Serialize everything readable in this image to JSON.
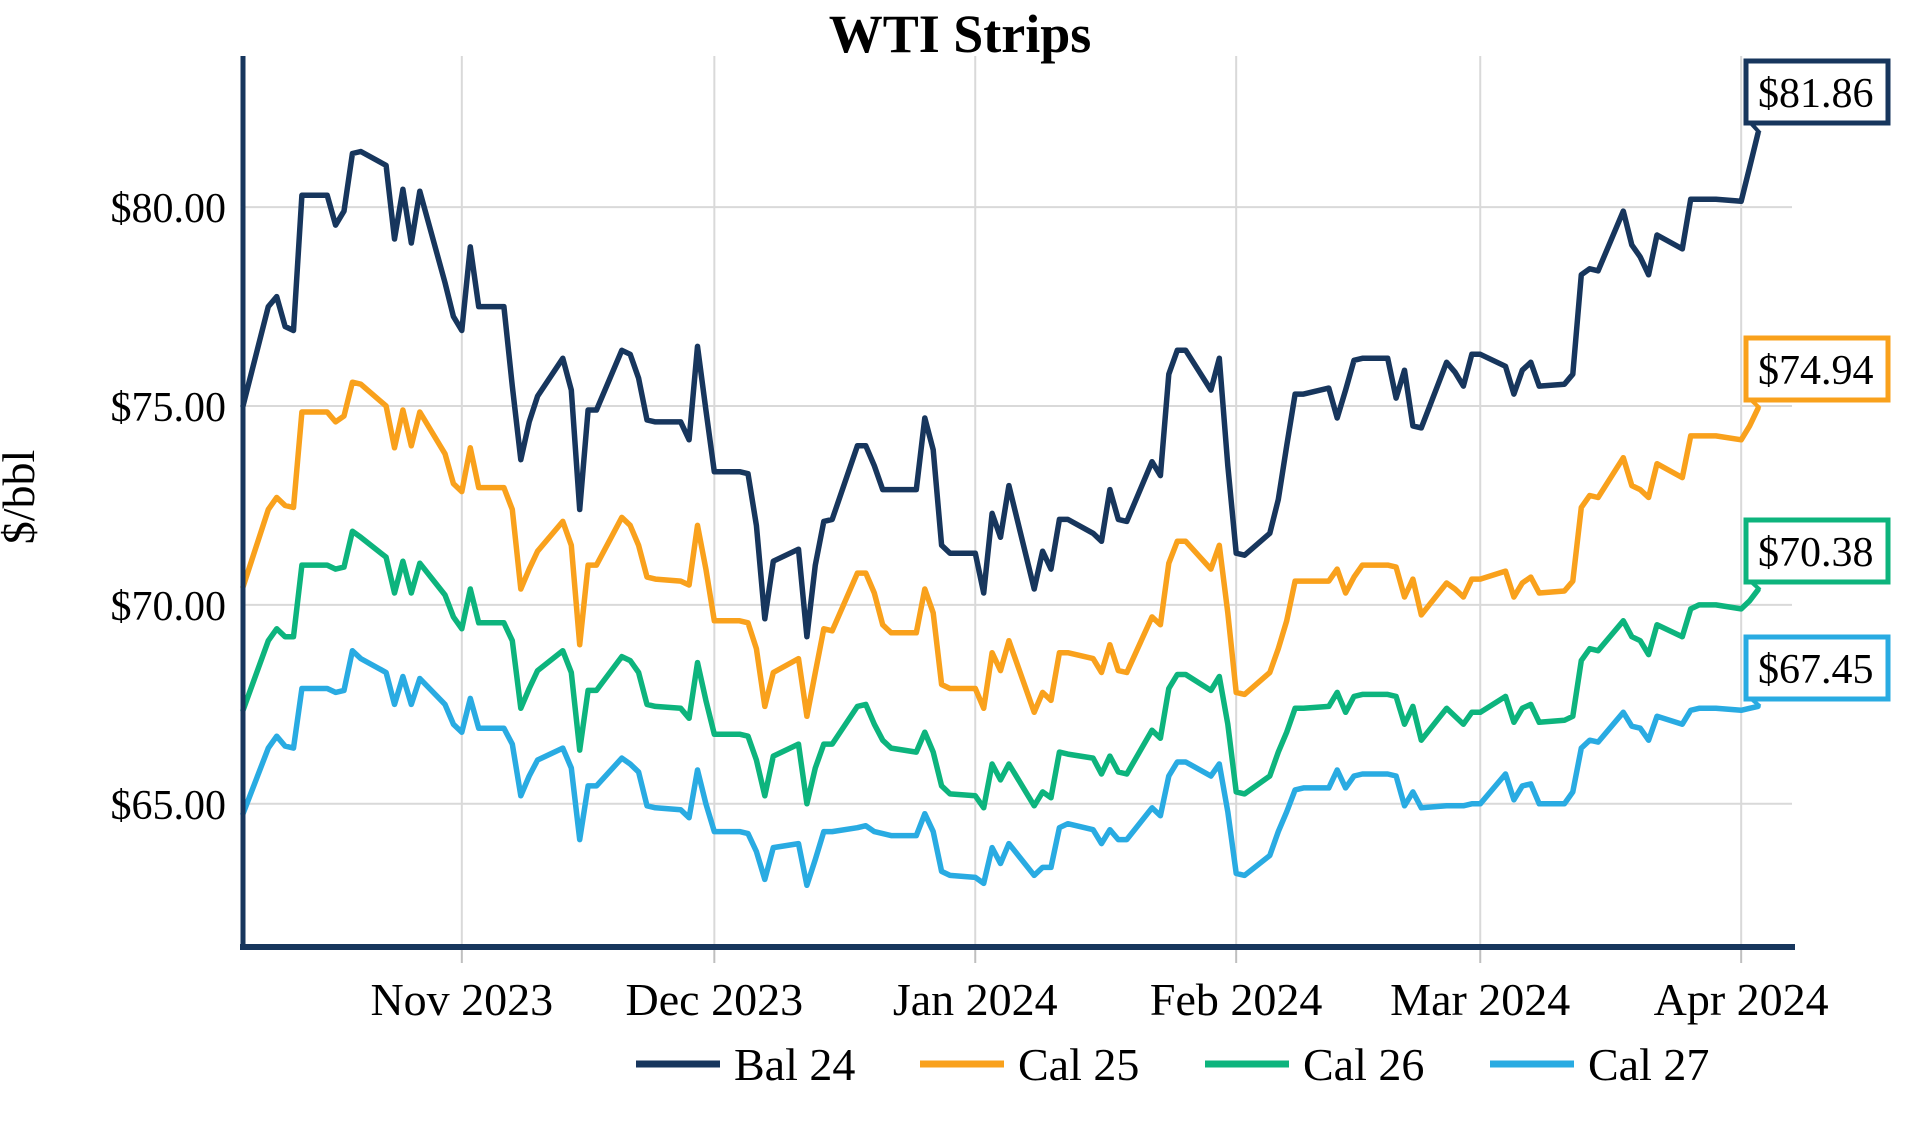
{
  "title": "WTI Strips",
  "y_axis": {
    "label": "$/bbl",
    "ticks": [
      {
        "value": 65,
        "label": "$65.00"
      },
      {
        "value": 70,
        "label": "$70.00"
      },
      {
        "value": 75,
        "label": "$75.00"
      },
      {
        "value": 80,
        "label": "$80.00"
      }
    ]
  },
  "x_axis": {
    "ticks": [
      {
        "date": "2023-11-01",
        "label": "Nov 2023"
      },
      {
        "date": "2023-12-01",
        "label": "Dec 2023"
      },
      {
        "date": "2024-01-01",
        "label": "Jan 2024"
      },
      {
        "date": "2024-02-01",
        "label": "Feb 2024"
      },
      {
        "date": "2024-03-01",
        "label": "Mar 2024"
      },
      {
        "date": "2024-04-01",
        "label": "Apr 2024"
      }
    ]
  },
  "colors": {
    "bal24": "#17365d",
    "cal25": "#f9a11c",
    "cal26": "#0db47d",
    "cal27": "#29abe2",
    "gridline": "#d9d9d9",
    "axis": "#17365d"
  },
  "chart_data": {
    "type": "line",
    "title": "WTI Strips",
    "xlabel": "",
    "ylabel": "$/bbl",
    "ylim": [
      61.4,
      83.8
    ],
    "x_range": [
      "2023-10-06",
      "2024-04-03"
    ],
    "grid": true,
    "legend_position": "bottom",
    "x": [
      "2023-10-06",
      "2023-10-09",
      "2023-10-10",
      "2023-10-11",
      "2023-10-12",
      "2023-10-13",
      "2023-10-16",
      "2023-10-17",
      "2023-10-18",
      "2023-10-19",
      "2023-10-20",
      "2023-10-23",
      "2023-10-24",
      "2023-10-25",
      "2023-10-26",
      "2023-10-27",
      "2023-10-30",
      "2023-10-31",
      "2023-11-01",
      "2023-11-02",
      "2023-11-03",
      "2023-11-06",
      "2023-11-07",
      "2023-11-08",
      "2023-11-09",
      "2023-11-10",
      "2023-11-13",
      "2023-11-14",
      "2023-11-15",
      "2023-11-16",
      "2023-11-17",
      "2023-11-20",
      "2023-11-21",
      "2023-11-22",
      "2023-11-23",
      "2023-11-24",
      "2023-11-27",
      "2023-11-28",
      "2023-11-29",
      "2023-11-30",
      "2023-12-01",
      "2023-12-04",
      "2023-12-05",
      "2023-12-06",
      "2023-12-07",
      "2023-12-08",
      "2023-12-11",
      "2023-12-12",
      "2023-12-13",
      "2023-12-14",
      "2023-12-15",
      "2023-12-18",
      "2023-12-19",
      "2023-12-20",
      "2023-12-21",
      "2023-12-22",
      "2023-12-25",
      "2023-12-26",
      "2023-12-27",
      "2023-12-28",
      "2023-12-29",
      "2024-01-01",
      "2024-01-02",
      "2024-01-03",
      "2024-01-04",
      "2024-01-05",
      "2024-01-08",
      "2024-01-09",
      "2024-01-10",
      "2024-01-11",
      "2024-01-12",
      "2024-01-15",
      "2024-01-16",
      "2024-01-17",
      "2024-01-18",
      "2024-01-19",
      "2024-01-22",
      "2024-01-23",
      "2024-01-24",
      "2024-01-25",
      "2024-01-26",
      "2024-01-29",
      "2024-01-30",
      "2024-01-31",
      "2024-02-01",
      "2024-02-02",
      "2024-02-05",
      "2024-02-06",
      "2024-02-07",
      "2024-02-08",
      "2024-02-09",
      "2024-02-12",
      "2024-02-13",
      "2024-02-14",
      "2024-02-15",
      "2024-02-16",
      "2024-02-19",
      "2024-02-20",
      "2024-02-21",
      "2024-02-22",
      "2024-02-23",
      "2024-02-26",
      "2024-02-27",
      "2024-02-28",
      "2024-02-29",
      "2024-03-01",
      "2024-03-04",
      "2024-03-05",
      "2024-03-06",
      "2024-03-07",
      "2024-03-08",
      "2024-03-11",
      "2024-03-12",
      "2024-03-13",
      "2024-03-14",
      "2024-03-15",
      "2024-03-18",
      "2024-03-19",
      "2024-03-20",
      "2024-03-21",
      "2024-03-22",
      "2024-03-25",
      "2024-03-26",
      "2024-03-27",
      "2024-03-28",
      "2024-03-29",
      "2024-04-01",
      "2024-04-02",
      "2024-04-03"
    ],
    "series": [
      {
        "name": "Bal 24",
        "color": "#17365d",
        "end_label": "$81.86",
        "values": [
          75.0,
          77.5,
          77.75,
          77.0,
          76.9,
          80.3,
          80.3,
          79.55,
          79.9,
          81.35,
          81.4,
          81.05,
          79.2,
          80.45,
          79.1,
          80.4,
          78.1,
          77.25,
          76.9,
          79.0,
          77.5,
          77.5,
          75.5,
          73.65,
          74.6,
          75.25,
          76.2,
          75.4,
          72.4,
          74.9,
          74.9,
          76.4,
          76.3,
          75.7,
          74.65,
          74.6,
          74.6,
          74.15,
          76.5,
          74.9,
          73.35,
          73.35,
          73.3,
          72.0,
          69.65,
          71.1,
          71.4,
          69.2,
          71.0,
          72.1,
          72.15,
          74.0,
          74.0,
          73.5,
          72.9,
          72.9,
          72.9,
          74.7,
          73.9,
          71.5,
          71.3,
          71.3,
          70.3,
          72.3,
          71.7,
          73.0,
          70.4,
          71.35,
          70.9,
          72.15,
          72.15,
          71.8,
          71.6,
          72.9,
          72.15,
          72.1,
          73.6,
          73.25,
          75.8,
          76.4,
          76.4,
          75.4,
          76.2,
          73.5,
          71.3,
          71.25,
          71.8,
          72.65,
          74.0,
          75.3,
          75.3,
          75.45,
          74.7,
          75.4,
          76.15,
          76.2,
          76.2,
          75.2,
          75.9,
          74.5,
          74.45,
          76.1,
          75.85,
          75.5,
          76.3,
          76.3,
          76.0,
          75.3,
          75.9,
          76.1,
          75.5,
          75.55,
          75.8,
          78.3,
          78.45,
          78.4,
          79.9,
          79.05,
          78.75,
          78.3,
          79.3,
          78.95,
          80.2,
          80.2,
          80.2,
          80.2,
          80.15,
          81.0,
          81.86
        ]
      },
      {
        "name": "Cal 25",
        "color": "#f9a11c",
        "end_label": "$74.94",
        "values": [
          70.45,
          72.4,
          72.7,
          72.5,
          72.45,
          74.85,
          74.85,
          74.6,
          74.75,
          75.6,
          75.55,
          75.0,
          73.95,
          74.9,
          74.0,
          74.85,
          73.8,
          73.05,
          72.85,
          73.95,
          72.95,
          72.95,
          72.4,
          70.4,
          70.9,
          71.35,
          72.1,
          71.5,
          69.0,
          71.0,
          71.0,
          72.2,
          72.0,
          71.5,
          70.7,
          70.65,
          70.6,
          70.5,
          72.0,
          70.9,
          69.6,
          69.6,
          69.55,
          68.9,
          67.45,
          68.3,
          68.65,
          67.2,
          68.3,
          69.4,
          69.35,
          70.8,
          70.8,
          70.3,
          69.5,
          69.3,
          69.3,
          70.4,
          69.8,
          68.0,
          67.9,
          67.9,
          67.4,
          68.8,
          68.35,
          69.1,
          67.3,
          67.8,
          67.6,
          68.8,
          68.8,
          68.65,
          68.3,
          69.0,
          68.35,
          68.3,
          69.7,
          69.5,
          71.05,
          71.6,
          71.6,
          70.9,
          71.5,
          69.8,
          67.8,
          67.75,
          68.3,
          68.9,
          69.6,
          70.6,
          70.6,
          70.6,
          70.9,
          70.3,
          70.7,
          71.0,
          71.0,
          70.95,
          70.2,
          70.65,
          69.75,
          70.55,
          70.4,
          70.2,
          70.65,
          70.65,
          70.85,
          70.2,
          70.55,
          70.7,
          70.3,
          70.35,
          70.6,
          72.45,
          72.75,
          72.7,
          73.7,
          73.0,
          72.9,
          72.7,
          73.55,
          73.2,
          74.25,
          74.25,
          74.25,
          74.25,
          74.15,
          74.5,
          74.94
        ]
      },
      {
        "name": "Cal 26",
        "color": "#0db47d",
        "end_label": "$70.38",
        "values": [
          67.35,
          69.1,
          69.4,
          69.2,
          69.2,
          71.0,
          71.0,
          70.9,
          70.95,
          71.85,
          71.7,
          71.2,
          70.3,
          71.1,
          70.3,
          71.05,
          70.25,
          69.7,
          69.4,
          70.4,
          69.55,
          69.55,
          69.1,
          67.4,
          67.9,
          68.35,
          68.85,
          68.3,
          66.35,
          67.85,
          67.85,
          68.7,
          68.6,
          68.3,
          67.5,
          67.45,
          67.4,
          67.15,
          68.55,
          67.6,
          66.75,
          66.75,
          66.7,
          66.1,
          65.2,
          66.2,
          66.5,
          65.0,
          65.9,
          66.5,
          66.5,
          67.45,
          67.5,
          67.0,
          66.6,
          66.4,
          66.3,
          66.8,
          66.3,
          65.45,
          65.25,
          65.2,
          64.9,
          66.0,
          65.6,
          66.0,
          64.95,
          65.3,
          65.15,
          66.3,
          66.25,
          66.15,
          65.75,
          66.2,
          65.8,
          65.75,
          66.85,
          66.65,
          67.9,
          68.25,
          68.25,
          67.85,
          68.2,
          67.0,
          65.3,
          65.25,
          65.7,
          66.3,
          66.8,
          67.4,
          67.4,
          67.45,
          67.8,
          67.3,
          67.7,
          67.75,
          67.75,
          67.7,
          67.0,
          67.45,
          66.6,
          67.4,
          67.2,
          67.0,
          67.3,
          67.3,
          67.7,
          67.05,
          67.4,
          67.5,
          67.05,
          67.1,
          67.2,
          68.6,
          68.9,
          68.85,
          69.6,
          69.2,
          69.1,
          68.75,
          69.5,
          69.2,
          69.9,
          70.0,
          70.0,
          70.0,
          69.9,
          70.1,
          70.38
        ]
      },
      {
        "name": "Cal 27",
        "color": "#29abe2",
        "end_label": "$67.45",
        "values": [
          64.75,
          66.4,
          66.7,
          66.45,
          66.4,
          67.9,
          67.9,
          67.8,
          67.85,
          68.85,
          68.65,
          68.3,
          67.5,
          68.2,
          67.5,
          68.15,
          67.5,
          67.0,
          66.8,
          67.65,
          66.9,
          66.9,
          66.5,
          65.2,
          65.7,
          66.1,
          66.4,
          65.9,
          64.1,
          65.45,
          65.45,
          66.15,
          66.0,
          65.8,
          64.95,
          64.9,
          64.85,
          64.65,
          65.85,
          65.0,
          64.3,
          64.3,
          64.25,
          63.8,
          63.1,
          63.9,
          64.0,
          62.95,
          63.6,
          64.3,
          64.3,
          64.4,
          64.45,
          64.3,
          64.25,
          64.2,
          64.2,
          64.75,
          64.3,
          63.3,
          63.2,
          63.15,
          63.0,
          63.9,
          63.5,
          64.0,
          63.2,
          63.4,
          63.4,
          64.4,
          64.5,
          64.35,
          64.0,
          64.35,
          64.1,
          64.1,
          64.9,
          64.7,
          65.7,
          66.05,
          66.05,
          65.7,
          66.0,
          64.8,
          63.25,
          63.2,
          63.7,
          64.3,
          64.8,
          65.35,
          65.4,
          65.4,
          65.85,
          65.4,
          65.7,
          65.75,
          65.75,
          65.7,
          64.95,
          65.3,
          64.9,
          64.95,
          64.95,
          64.95,
          65.0,
          65.0,
          65.75,
          65.1,
          65.45,
          65.5,
          65.0,
          65.0,
          65.3,
          66.4,
          66.6,
          66.55,
          67.3,
          66.95,
          66.9,
          66.6,
          67.2,
          67.0,
          67.35,
          67.4,
          67.4,
          67.4,
          67.35,
          67.4,
          67.45
        ]
      }
    ]
  },
  "legend": [
    {
      "label": "Bal 24",
      "color": "#17365d"
    },
    {
      "label": "Cal 25",
      "color": "#f9a11c"
    },
    {
      "label": "Cal 26",
      "color": "#0db47d"
    },
    {
      "label": "Cal 27",
      "color": "#29abe2"
    }
  ],
  "end_labels": [
    {
      "series": "Bal 24",
      "text": "$81.86",
      "color": "#17365d"
    },
    {
      "series": "Cal 25",
      "text": "$74.94",
      "color": "#f9a11c"
    },
    {
      "series": "Cal 26",
      "text": "$70.38",
      "color": "#0db47d"
    },
    {
      "series": "Cal 27",
      "text": "$67.45",
      "color": "#29abe2"
    }
  ]
}
